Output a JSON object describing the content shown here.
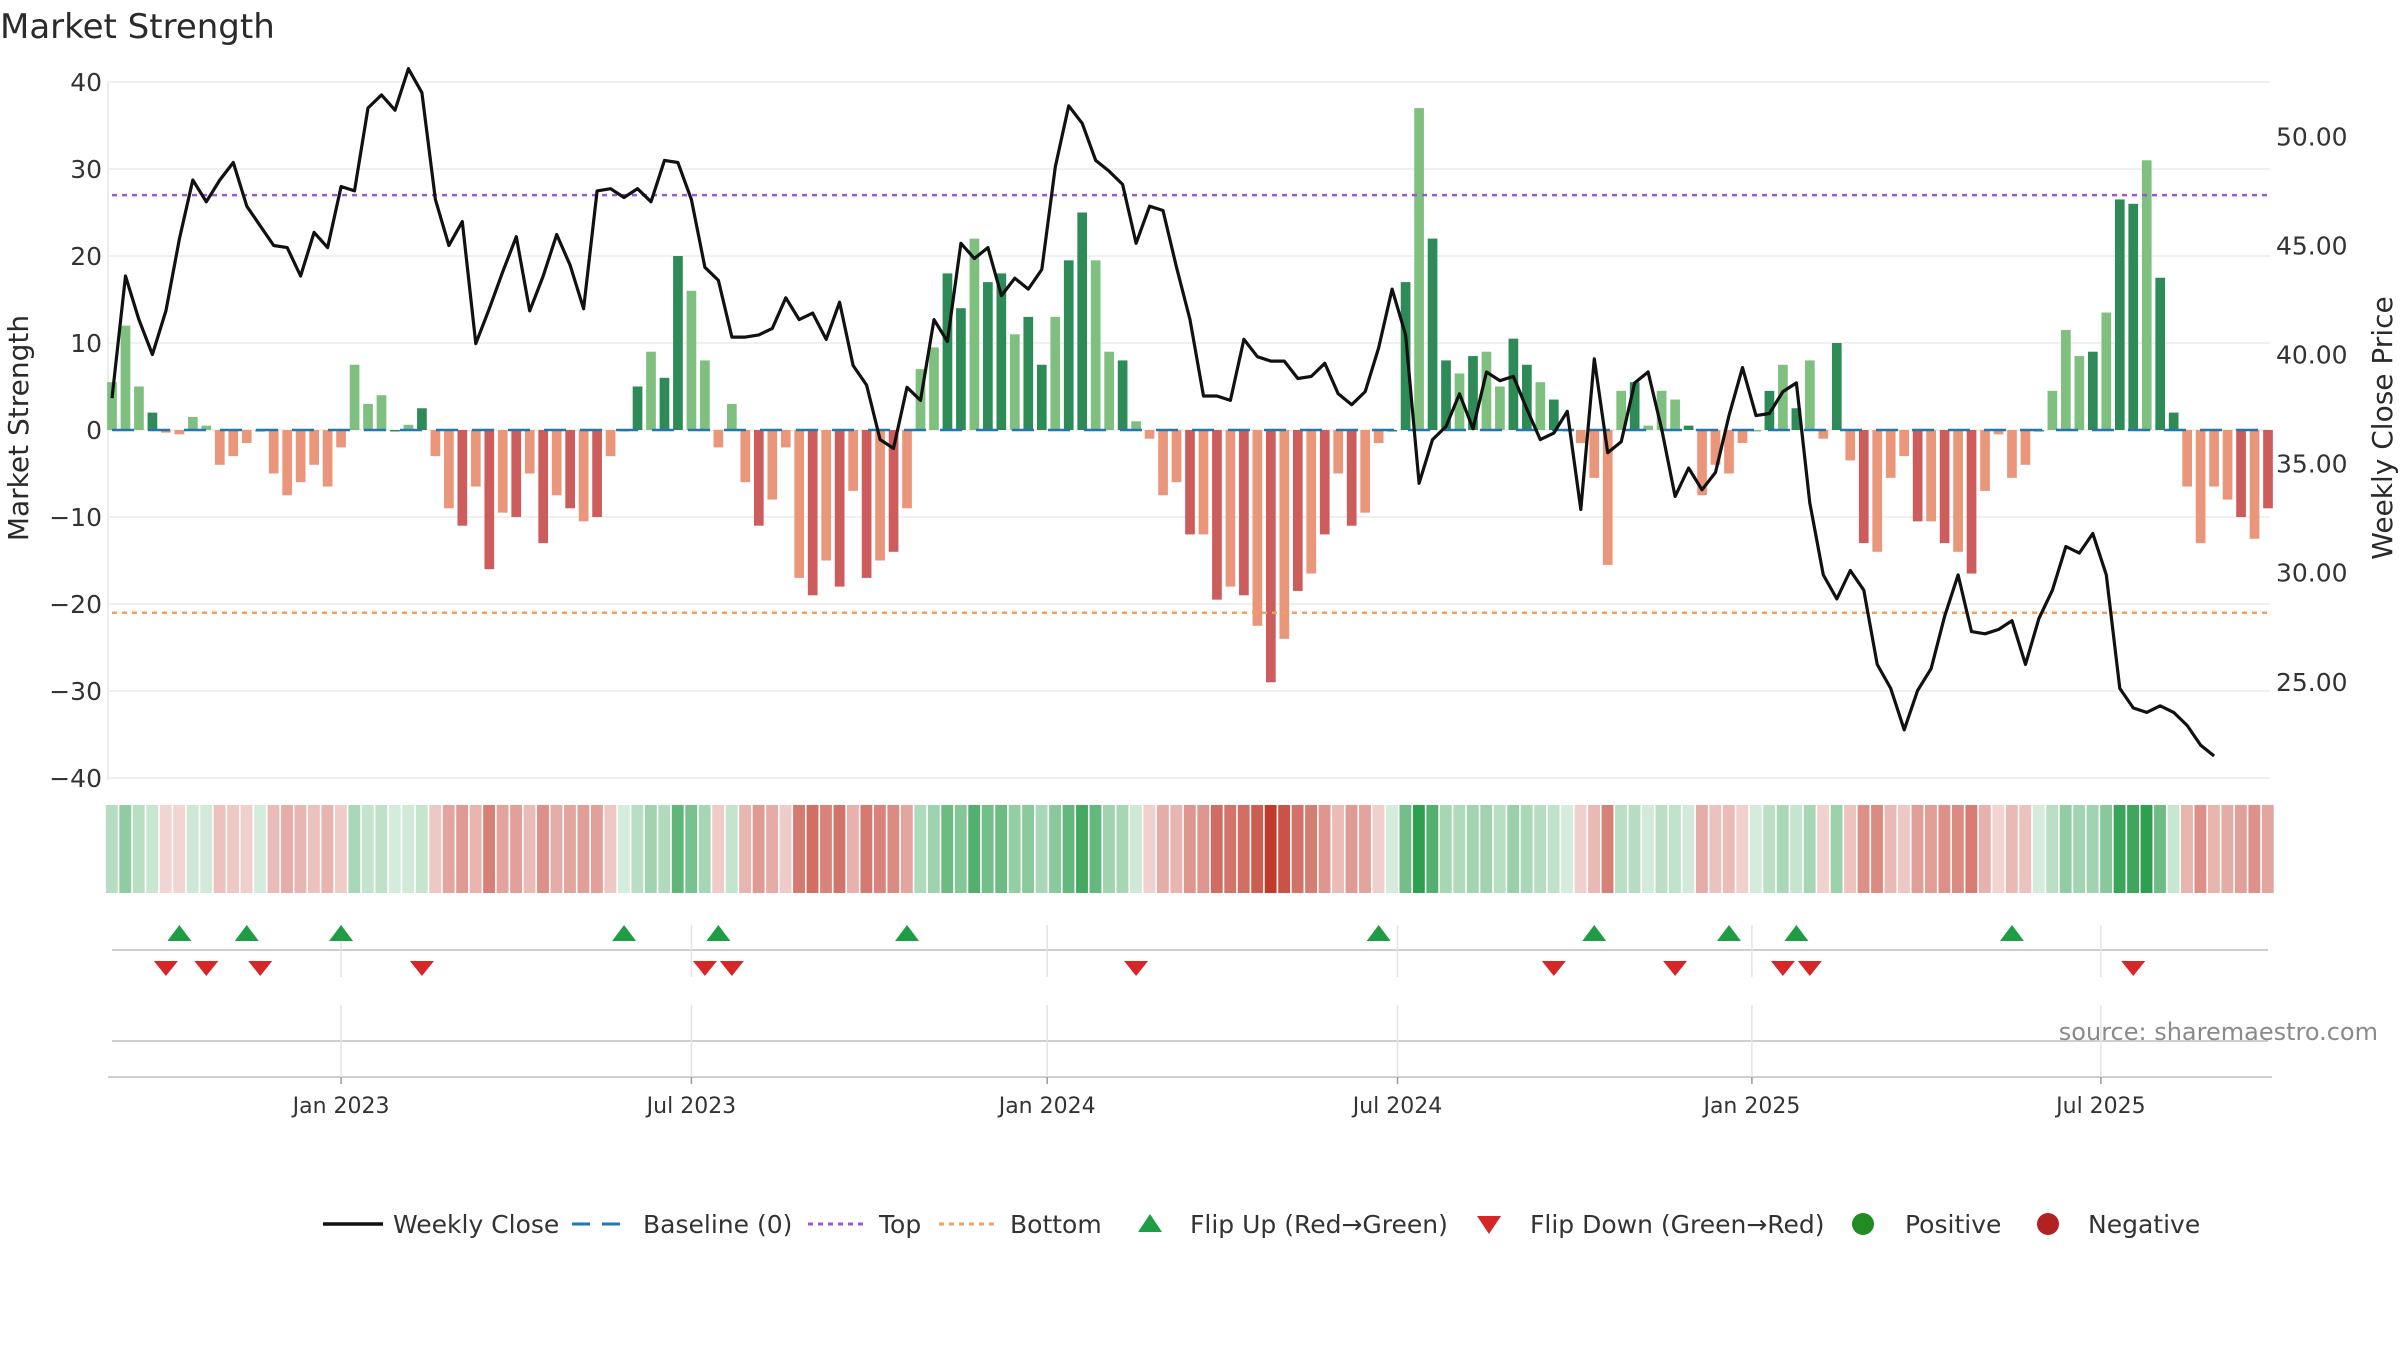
{
  "chart_data": {
    "type": "bar+line",
    "title": "Market Strength",
    "ylabel_left": "Market Strength",
    "ylabel_right": "Weekly Close Price",
    "ylim_left": [
      -40,
      40
    ],
    "yticks_left": [
      "40",
      "30",
      "20",
      "10",
      "0",
      "−10",
      "−20",
      "−30",
      "−40"
    ],
    "ylim_right": [
      20.5,
      53.5
    ],
    "yticks_right": [
      {
        "value": 50,
        "label": "50.00"
      },
      {
        "value": 45,
        "label": "45.00"
      },
      {
        "value": 40,
        "label": "40.00"
      },
      {
        "value": 35,
        "label": "35.00"
      },
      {
        "value": 30,
        "label": "30.00"
      },
      {
        "value": 25,
        "label": "25.00"
      }
    ],
    "x_start": "2022-09-05",
    "x_end": "2025-09-29",
    "x_ticks": [
      {
        "label": "Jan 2023",
        "week": 17
      },
      {
        "label": "Jul 2023",
        "week": 43
      },
      {
        "label": "Jan 2024",
        "week": 69.4
      },
      {
        "label": "Jul 2024",
        "week": 95.4
      },
      {
        "label": "Jan 2025",
        "week": 121.7
      },
      {
        "label": "Jul 2025",
        "week": 147.6
      }
    ],
    "top_line": 27,
    "bottom_line": -21,
    "strength": [
      5.5,
      12,
      5,
      2,
      -0.3,
      -0.5,
      1.5,
      0.5,
      -4,
      -3,
      -1.5,
      0,
      -5,
      -7.5,
      -6,
      -4,
      -6.5,
      -2,
      7.5,
      3,
      4,
      0,
      0.6,
      2.5,
      -3,
      -9,
      -11,
      -6.5,
      -16,
      -9.5,
      -10,
      -5,
      -13,
      -7.5,
      -9,
      -10.5,
      -10,
      -3,
      0,
      5,
      9,
      6,
      20,
      16,
      8,
      -2,
      3,
      -6,
      -11,
      -8,
      -2,
      -17,
      -19,
      -15,
      -18,
      -7,
      -17,
      -15,
      -14,
      -9,
      7,
      9.5,
      18,
      14,
      22,
      17,
      18,
      11,
      13,
      7.5,
      13,
      19.5,
      25,
      19.5,
      9,
      8,
      1,
      -1,
      -7.5,
      -6,
      -12,
      -12,
      -19.5,
      -18,
      -19,
      -22.5,
      -29,
      -24,
      -18.5,
      -16.5,
      -12,
      -5,
      -11,
      -9.5,
      -1.5,
      0,
      17,
      37,
      22,
      8,
      6.5,
      8.5,
      9,
      5,
      10.5,
      7.5,
      5.5,
      3.5,
      0,
      -1.5,
      -5.5,
      -15.5,
      4.5,
      5.5,
      0.5,
      4.5,
      3.5,
      0.5,
      -7.5,
      -4,
      -5,
      -1.5,
      0,
      4.5,
      7.5,
      2.5,
      8,
      -1,
      10,
      -3.5,
      -13,
      -14,
      -5.5,
      -3,
      -10.5,
      -10.5,
      -13,
      -14,
      -16.5,
      -7,
      -0.5,
      -5.5,
      -4,
      0,
      4.5,
      11.5,
      8.5,
      9,
      13.5,
      26.5,
      26,
      31,
      17.5,
      2,
      -6.5,
      -13,
      -6.5,
      -8,
      -10,
      -12.5,
      -9
    ],
    "weekly_close": [
      38,
      43.6,
      41.6,
      40,
      42,
      45.3,
      48,
      47,
      48,
      48.8,
      46.8,
      45.9,
      45,
      44.9,
      43.6,
      45.6,
      44.9,
      47.7,
      47.5,
      51.3,
      51.9,
      51.2,
      53.1,
      52,
      47.1,
      45,
      46.1,
      40.5,
      42.1,
      43.8,
      45.4,
      42,
      43.6,
      45.5,
      44.1,
      42.1,
      47.5,
      47.6,
      47.2,
      47.6,
      47,
      48.9,
      48.8,
      47.1,
      44,
      43.4,
      40.8,
      40.8,
      40.9,
      41.2,
      42.6,
      41.6,
      41.9,
      40.7,
      42.4,
      39.5,
      38.6,
      36.1,
      35.7,
      38.5,
      37.9,
      41.6,
      40.6,
      45.1,
      44.4,
      44.9,
      42.7,
      43.5,
      43,
      43.9,
      48.6,
      51.4,
      50.6,
      48.9,
      48.4,
      47.8,
      45.1,
      46.8,
      46.6,
      44,
      41.6,
      38.1,
      38.1,
      37.9,
      40.7,
      39.9,
      39.7,
      39.7,
      38.9,
      39,
      39.6,
      38.2,
      37.7,
      38.3,
      40.3,
      43,
      40.9,
      34.1,
      36.1,
      36.7,
      38.2,
      36.6,
      39.2,
      38.8,
      39,
      37.5,
      36.1,
      36.4,
      37.4,
      32.9,
      39.8,
      35.5,
      36,
      38.7,
      39.2,
      36.6,
      33.5,
      34.8,
      33.8,
      34.6,
      37.2,
      39.4,
      37.2,
      37.3,
      38.3,
      38.7,
      33.2,
      29.9,
      28.8,
      30.1,
      29.2,
      25.8,
      24.7,
      22.8,
      24.6,
      25.6,
      28,
      29.9,
      27.3,
      27.2,
      27.4,
      27.8,
      25.8,
      27.9,
      29.2,
      31.2,
      30.9,
      31.8,
      29.9,
      24.7,
      23.8,
      23.6,
      23.9,
      23.6,
      23,
      22.1,
      21.6
    ],
    "flip_up_weeks": [
      5,
      10,
      17,
      38,
      45,
      59,
      94,
      110,
      120,
      125,
      141
    ],
    "flip_down_weeks": [
      4,
      7,
      11,
      23,
      44,
      46,
      76,
      107,
      116,
      124,
      126,
      150
    ],
    "legend": [
      {
        "key": "close",
        "label": "Weekly Close",
        "color": "#111111"
      },
      {
        "key": "baseline",
        "label": "Baseline (0)",
        "color": "#1f77b4"
      },
      {
        "key": "top",
        "label": "Top",
        "color": "#9b59d0"
      },
      {
        "key": "bottom",
        "label": "Bottom",
        "color": "#f0a060"
      },
      {
        "key": "flipup",
        "label": "Flip Up (Red→Green)",
        "color": "#1f9d45"
      },
      {
        "key": "flipdown",
        "label": "Flip Down (Green→Red)",
        "color": "#d62728"
      },
      {
        "key": "positive",
        "label": "Positive",
        "color": "#228b22"
      },
      {
        "key": "negative",
        "label": "Negative",
        "color": "#b22222"
      }
    ],
    "colors": {
      "pos_dark": "#2e8b57",
      "pos_light": "#7fc080",
      "neg_dark": "#cd5c5c",
      "neg_light": "#e9967a",
      "heat_pos": "#2e9e4f",
      "heat_neg": "#c0392b",
      "baseline": "#1f77b4",
      "top": "#9b59d0",
      "bottom": "#f0a060",
      "line": "#111111",
      "tri_up": "#1f9d45",
      "tri_down": "#d62728"
    }
  },
  "source": "source: sharemaestro.com"
}
